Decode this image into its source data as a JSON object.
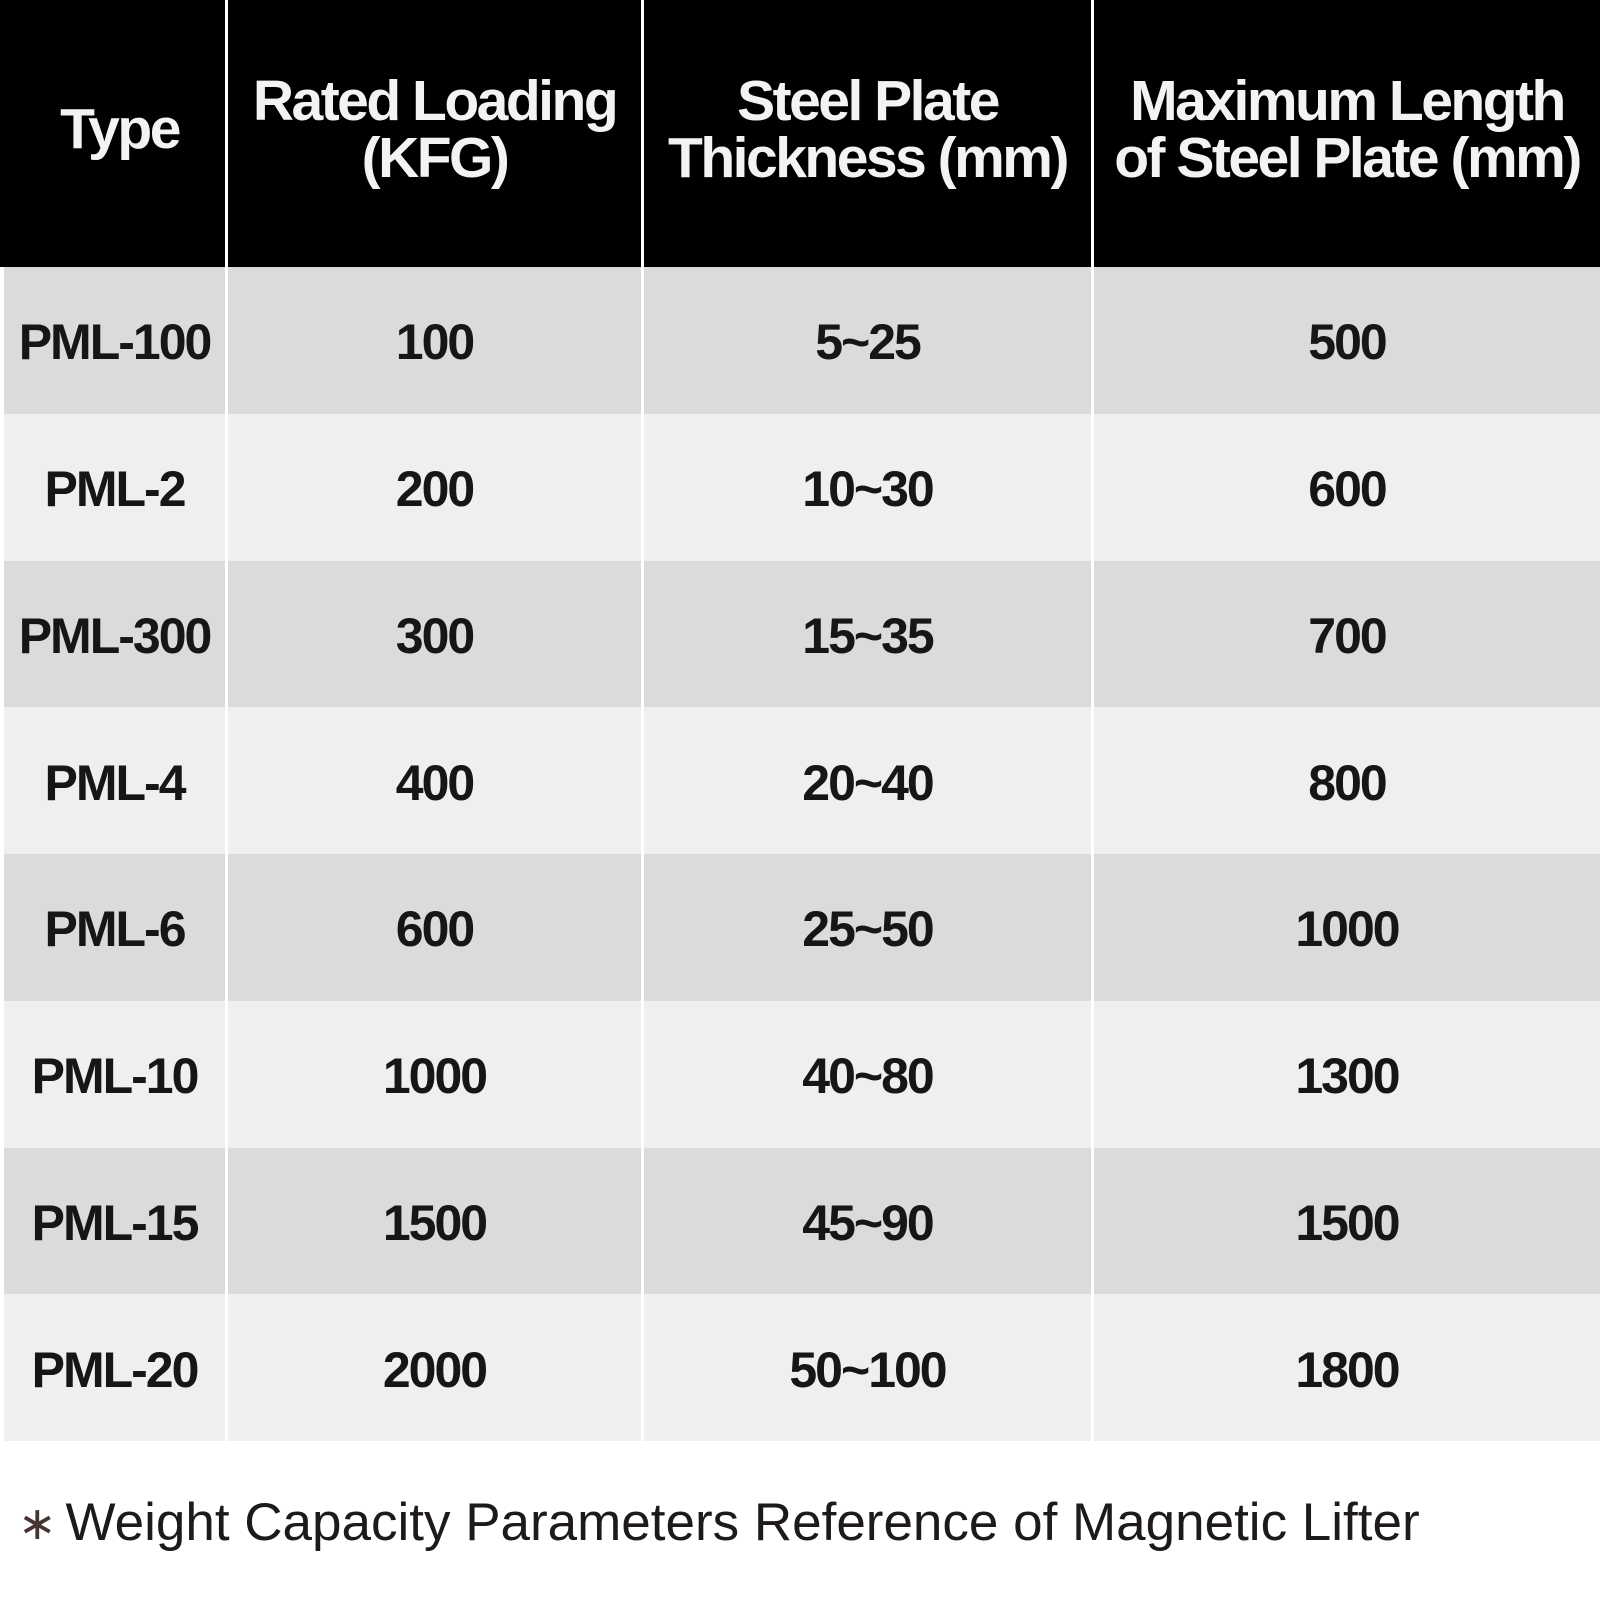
{
  "table": {
    "headers": [
      "Type",
      "Rated Loading\n(KFG)",
      "Steel Plate\nThickness (mm)",
      "Maximum Length\nof Steel Plate (mm)"
    ],
    "rows": [
      [
        "PML-100",
        "100",
        "5~25",
        "500"
      ],
      [
        "PML-2",
        "200",
        "10~30",
        "600"
      ],
      [
        "PML-300",
        "300",
        "15~35",
        "700"
      ],
      [
        "PML-4",
        "400",
        "20~40",
        "800"
      ],
      [
        "PML-6",
        "600",
        "25~50",
        "1000"
      ],
      [
        "PML-10",
        "1000",
        "40~80",
        "1300"
      ],
      [
        "PML-15",
        "1500",
        "45~90",
        "1500"
      ],
      [
        "PML-20",
        "2000",
        "50~100",
        "1800"
      ]
    ]
  },
  "footnote": {
    "marker": "∗",
    "text": "Weight Capacity Parameters Reference of Magnetic Lifter"
  },
  "colors": {
    "header_background": "#000000",
    "header_text": "#f5f3f1",
    "row_dark": "#dbdbdb",
    "row_light": "#efefef",
    "body_text": "#171515",
    "divider": "#ffffff",
    "footnote_marker": "#463431"
  }
}
